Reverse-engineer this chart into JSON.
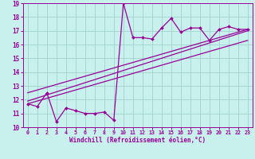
{
  "xlabel": "Windchill (Refroidissement éolien,°C)",
  "xlim": [
    -0.5,
    23.5
  ],
  "ylim": [
    10,
    19
  ],
  "xticks": [
    0,
    1,
    2,
    3,
    4,
    5,
    6,
    7,
    8,
    9,
    10,
    11,
    12,
    13,
    14,
    15,
    16,
    17,
    18,
    19,
    20,
    21,
    22,
    23
  ],
  "yticks": [
    10,
    11,
    12,
    13,
    14,
    15,
    16,
    17,
    18,
    19
  ],
  "bg_color": "#c8f0ec",
  "line_color": "#990099",
  "grid_color": "#99cccc",
  "data_x": [
    0,
    1,
    2,
    3,
    4,
    5,
    6,
    7,
    8,
    9,
    10,
    11,
    12,
    13,
    14,
    15,
    16,
    17,
    18,
    19,
    20,
    21,
    22,
    23
  ],
  "data_y": [
    11.7,
    11.5,
    12.5,
    10.4,
    11.4,
    11.2,
    11.0,
    11.0,
    11.1,
    10.5,
    19.0,
    16.5,
    16.5,
    16.4,
    17.2,
    17.9,
    16.9,
    17.2,
    17.2,
    16.3,
    17.1,
    17.3,
    17.1,
    17.1
  ],
  "trend1_x": [
    0,
    23
  ],
  "trend1_y": [
    11.7,
    16.3
  ],
  "trend2_x": [
    0,
    23
  ],
  "trend2_y": [
    11.9,
    17.0
  ],
  "trend3_x": [
    0,
    23
  ],
  "trend3_y": [
    12.5,
    17.1
  ]
}
